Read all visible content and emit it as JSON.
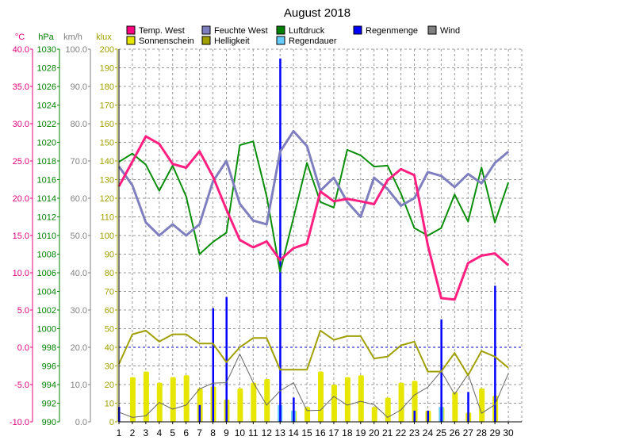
{
  "chart_data": {
    "type": "line",
    "title": "August 2018",
    "days": [
      "1",
      "2",
      "3",
      "4",
      "5",
      "6",
      "7",
      "8",
      "9",
      "10",
      "11",
      "12",
      "13",
      "14",
      "15",
      "16",
      "17",
      "18",
      "19",
      "20",
      "21",
      "22",
      "23",
      "24",
      "25",
      "26",
      "27",
      "28",
      "29",
      "30"
    ],
    "axes": [
      {
        "id": "temp",
        "unit": "°C",
        "color": "#e4007c",
        "min": -10,
        "max": 40,
        "step": 5,
        "decimals": 1
      },
      {
        "id": "pressure",
        "unit": "hPa",
        "color": "#008000",
        "min": 990,
        "max": 1030,
        "step": 2,
        "decimals": 0
      },
      {
        "id": "wind",
        "unit": "km/h",
        "color": "#808080",
        "min": 0,
        "max": 100,
        "step": 10,
        "decimals": 1
      },
      {
        "id": "lux",
        "unit": "klux",
        "color": "#a0a000",
        "min": 0,
        "max": 200,
        "step": 10,
        "decimals": 0
      }
    ],
    "legend": [
      {
        "label": "Temp. West",
        "color": "#ff0080"
      },
      {
        "label": "Feuchte West",
        "color": "#7f7fbf"
      },
      {
        "label": "Luftdruck",
        "color": "#008000"
      },
      {
        "label": "Regenmenge",
        "color": "#0000ff"
      },
      {
        "label": "Wind",
        "color": "#808080"
      },
      {
        "label": "Sonnenschein",
        "color": "#e6e600"
      },
      {
        "label": "Helligkeit",
        "color": "#a0a000"
      },
      {
        "label": "Regendauer",
        "color": "#66ccff"
      }
    ],
    "series": {
      "temp_west": {
        "name": "Temp. West",
        "axis": "temp",
        "color": "#ff1f80",
        "width": 3,
        "values": [
          21.6,
          24.9,
          28.3,
          27.3,
          24.6,
          24.1,
          26.3,
          22.9,
          18.5,
          14.4,
          13.4,
          14.2,
          11.7,
          13.3,
          13.9,
          20.9,
          19.6,
          19.9,
          19.6,
          19.2,
          22.4,
          23.9,
          23.1,
          13.7,
          6.6,
          6.4,
          11.3,
          12.3,
          12.6,
          11.0
        ]
      },
      "feuchte_west": {
        "name": "Feuchte West",
        "axis": "lux",
        "color": "#7f7fbf",
        "width": 3,
        "values": [
          137,
          127,
          107,
          100,
          106,
          100,
          106,
          129,
          140,
          117,
          108,
          106,
          145,
          156,
          148,
          124,
          131,
          118,
          110,
          131,
          125,
          116,
          120,
          134,
          132,
          126,
          133,
          128,
          139,
          145
        ]
      },
      "luftdruck": {
        "name": "Luftdruck",
        "axis": "pressure",
        "color": "#0a8f0a",
        "width": 2,
        "values": [
          1017.9,
          1018.8,
          1017.6,
          1014.8,
          1017.5,
          1014.2,
          1008.0,
          1009.3,
          1010.3,
          1019.7,
          1020.1,
          1014.2,
          1006.1,
          1011.9,
          1017.8,
          1013.6,
          1013.0,
          1019.2,
          1018.6,
          1017.4,
          1017.5,
          1014.5,
          1010.8,
          1010.0,
          1010.8,
          1014.4,
          1011.5,
          1017.3,
          1011.4,
          1015.7
        ]
      },
      "helligkeit": {
        "name": "Helligkeit",
        "axis": "lux",
        "color": "#a0a000",
        "width": 2,
        "values": [
          31,
          47,
          49,
          43,
          47,
          47,
          42,
          42,
          32,
          40,
          45,
          45,
          28,
          28,
          28,
          49,
          44,
          46,
          46,
          34,
          35,
          41,
          43,
          27,
          27,
          37,
          25,
          38,
          35,
          29
        ]
      },
      "wind": {
        "name": "Wind",
        "axis": "wind",
        "color": "#666666",
        "width": 1,
        "values": [
          2.6,
          1.2,
          1.6,
          5.2,
          3.4,
          4.5,
          8.8,
          10.4,
          10.5,
          18.2,
          10.6,
          4.5,
          8.3,
          10.5,
          3.0,
          3.1,
          6.8,
          4.5,
          5.5,
          4.6,
          1.2,
          3.2,
          7.2,
          9.3,
          13.6,
          7.4,
          12.8,
          2.3,
          4.6,
          13.0
        ]
      },
      "sonnenschein": {
        "name": "Sonnenschein",
        "axis": "lux",
        "color": "#e6e600",
        "values": [
          0,
          24,
          27,
          21,
          24,
          25,
          18,
          19,
          12,
          18,
          21,
          23,
          0,
          6,
          8,
          27,
          20,
          24,
          25,
          8,
          13,
          21,
          22,
          6,
          8,
          16,
          5,
          18,
          14,
          0
        ]
      },
      "regenmenge": {
        "name": "Regenmenge",
        "axis": "lux",
        "color": "#0000ff",
        "values": [
          8,
          0,
          0,
          0,
          0,
          0,
          9,
          61,
          67,
          0,
          0,
          0,
          195,
          13,
          0,
          0,
          0,
          0,
          0,
          0,
          0,
          0,
          6,
          6,
          55,
          0,
          16,
          0,
          73,
          0
        ]
      },
      "regendauer": {
        "name": "Regendauer",
        "axis": "lux",
        "color": "#66ccff",
        "values": [
          0,
          0,
          0,
          0,
          0,
          0,
          0,
          0,
          0,
          0,
          0,
          0,
          9,
          6,
          0,
          0,
          0,
          0,
          0,
          0,
          0,
          0,
          0,
          0,
          8,
          0,
          0,
          0,
          0,
          0
        ]
      }
    },
    "ref_line": {
      "axis": "temp",
      "value": 0,
      "color": "#0000cc"
    }
  }
}
